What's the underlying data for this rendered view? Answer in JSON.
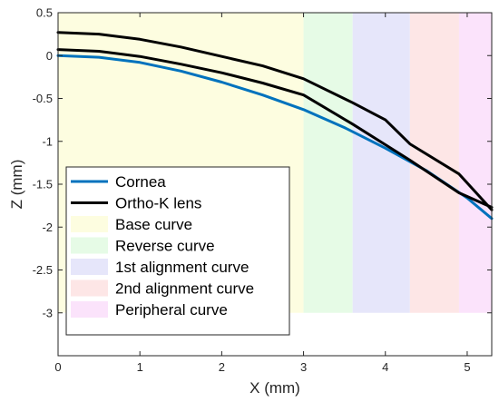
{
  "chart_data": {
    "type": "line",
    "xlabel": "X (mm)",
    "ylabel": "Z (mm)",
    "xlim": [
      0,
      5.3
    ],
    "ylim": [
      -3.5,
      0.5
    ],
    "xticks": [
      "0",
      "1",
      "2",
      "3",
      "4",
      "5"
    ],
    "yticks": [
      "0.5",
      "0",
      "-0.5",
      "-1",
      "-1.5",
      "-2",
      "-2.5",
      "-3"
    ],
    "grid": false,
    "legend_position": "bottom-left",
    "zones": [
      {
        "name": "Base curve",
        "x_start": 0,
        "x_end": 3.0,
        "y_top": 0.5,
        "y_bottom": -3.0,
        "color": "#fdfde0"
      },
      {
        "name": "Reverse curve",
        "x_start": 3.0,
        "x_end": 3.6,
        "y_top": 0.5,
        "y_bottom": -3.0,
        "color": "#e6fbe6"
      },
      {
        "name": "1st alignment curve",
        "x_start": 3.6,
        "x_end": 4.3,
        "y_top": 0.5,
        "y_bottom": -3.0,
        "color": "#e6e6fa"
      },
      {
        "name": "2nd alignment curve",
        "x_start": 4.3,
        "x_end": 4.9,
        "y_top": 0.5,
        "y_bottom": -3.0,
        "color": "#fde6e6"
      },
      {
        "name": "Peripheral curve",
        "x_start": 4.9,
        "x_end": 5.3,
        "y_top": 0.5,
        "y_bottom": -3.0,
        "color": "#fbe3fb"
      }
    ],
    "series": [
      {
        "name": "Cornea",
        "color": "#0072bd",
        "x": [
          0,
          0.5,
          1,
          1.5,
          2,
          2.5,
          3,
          3.5,
          4,
          4.5,
          5,
          5.3
        ],
        "y": [
          0,
          -0.02,
          -0.08,
          -0.18,
          -0.31,
          -0.46,
          -0.63,
          -0.84,
          -1.08,
          -1.34,
          -1.66,
          -1.9
        ]
      },
      {
        "name": "Ortho-K lens",
        "color": "#000000",
        "x": [
          0,
          0.5,
          1,
          1.5,
          2,
          2.5,
          3,
          3.6,
          4,
          4.3,
          4.9,
          5.3
        ],
        "y": [
          0.07,
          0.05,
          -0.01,
          -0.1,
          -0.2,
          -0.32,
          -0.46,
          -0.8,
          -1.04,
          -1.22,
          -1.6,
          -1.77
        ]
      },
      {
        "name": "",
        "color": "#000000",
        "x": [
          0,
          0.5,
          1,
          1.5,
          2,
          2.5,
          3,
          3.6,
          4,
          4.3,
          4.9,
          5.3
        ],
        "y": [
          0.27,
          0.25,
          0.19,
          0.1,
          -0.01,
          -0.12,
          -0.27,
          -0.55,
          -0.75,
          -1.03,
          -1.38,
          -1.8
        ]
      }
    ],
    "legend": [
      {
        "label": "Cornea",
        "kind": "line",
        "color": "#0072bd"
      },
      {
        "label": "Ortho-K lens",
        "kind": "line",
        "color": "#000000"
      },
      {
        "label": "Base curve",
        "kind": "patch",
        "color": "#fdfde0"
      },
      {
        "label": "Reverse curve",
        "kind": "patch",
        "color": "#e6fbe6"
      },
      {
        "label": "1st alignment curve",
        "kind": "patch",
        "color": "#e6e6fa"
      },
      {
        "label": "2nd alignment curve",
        "kind": "patch",
        "color": "#fde6e6"
      },
      {
        "label": "Peripheral curve",
        "kind": "patch",
        "color": "#fbe3fb"
      }
    ]
  }
}
